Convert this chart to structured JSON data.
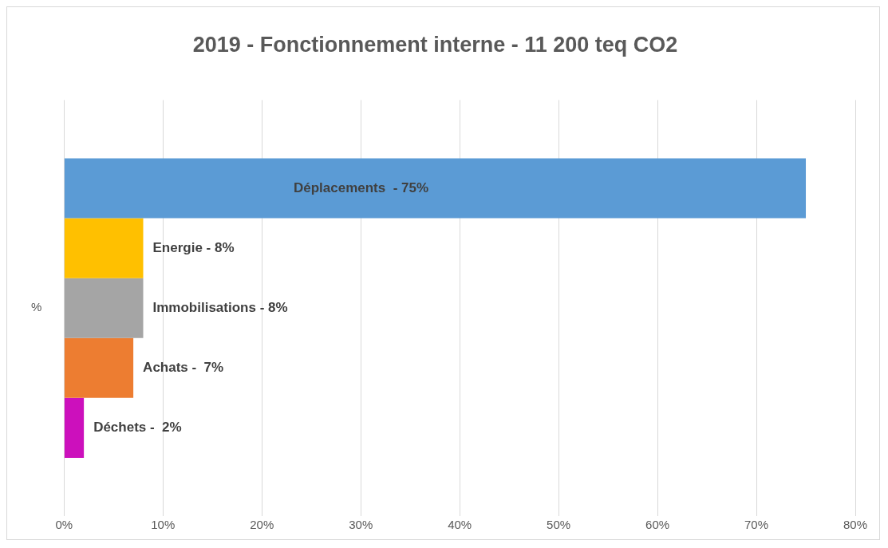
{
  "chart_data": {
    "type": "bar",
    "orientation": "horizontal",
    "title": "2019 - Fonctionnement interne - 11 200 teq CO2",
    "categories": [
      "%"
    ],
    "series": [
      {
        "color": "#5b9bd5",
        "values": [
          75
        ]
      },
      {
        "color": "#ffc000",
        "values": [
          8
        ]
      },
      {
        "color": "#a5a5a5",
        "values": [
          8
        ]
      },
      {
        "color": "#ed7d31",
        "values": [
          7
        ]
      },
      {
        "color": "#cc10bc",
        "values": [
          2
        ]
      }
    ],
    "xlim": [
      0,
      80
    ],
    "xticks": [
      {
        "value": 0,
        "label": "0%"
      },
      {
        "value": 10,
        "label": "10%"
      },
      {
        "value": 20,
        "label": "20%"
      },
      {
        "value": 30,
        "label": "30%"
      },
      {
        "value": 40,
        "label": "40%"
      },
      {
        "value": 50,
        "label": "50%"
      },
      {
        "value": 60,
        "label": "60%"
      },
      {
        "value": 70,
        "label": "70%"
      },
      {
        "value": 80,
        "label": "80%"
      }
    ],
    "annotations": [
      "Déplacements  - 75%",
      "Energie - 8%",
      "Immobilisations - 8%",
      "Achats -  7%",
      "Déchets -  2%"
    ],
    "grid": "x",
    "legend": false
  }
}
